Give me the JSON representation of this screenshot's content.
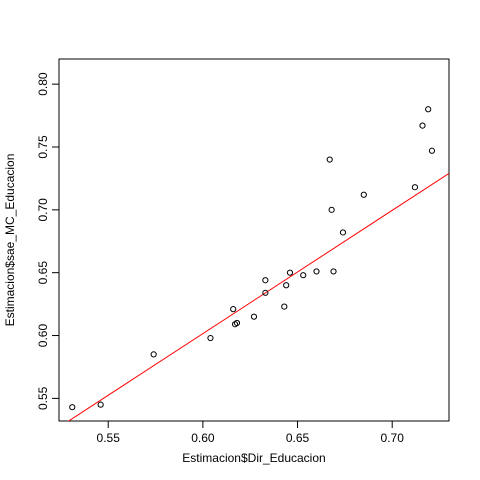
{
  "chart_data": {
    "type": "scatter",
    "title": "",
    "xlabel": "Estimacion$Dir_Educacion",
    "ylabel": "Estimacion$sae_MC_Educacion",
    "xlim": [
      0.524,
      0.73
    ],
    "ylim": [
      0.532,
      0.82
    ],
    "x_ticks": [
      0.55,
      0.6,
      0.65,
      0.7
    ],
    "x_tick_labels": [
      "0.55",
      "0.60",
      "0.65",
      "0.70"
    ],
    "y_ticks": [
      0.55,
      0.6,
      0.65,
      0.7,
      0.75,
      0.8
    ],
    "y_tick_labels": [
      "0.55",
      "0.60",
      "0.65",
      "0.70",
      "0.75",
      "0.80"
    ],
    "grid": false,
    "legend": "none",
    "point_color": "#000000",
    "fit_line_color": "#ff0000",
    "fit_line": {
      "x": [
        0.524,
        0.73
      ],
      "y": [
        0.527,
        0.729
      ]
    },
    "points": [
      {
        "x": 0.531,
        "y": 0.543
      },
      {
        "x": 0.546,
        "y": 0.545
      },
      {
        "x": 0.574,
        "y": 0.585
      },
      {
        "x": 0.604,
        "y": 0.598
      },
      {
        "x": 0.616,
        "y": 0.621
      },
      {
        "x": 0.617,
        "y": 0.609
      },
      {
        "x": 0.618,
        "y": 0.61
      },
      {
        "x": 0.627,
        "y": 0.615
      },
      {
        "x": 0.633,
        "y": 0.634
      },
      {
        "x": 0.633,
        "y": 0.644
      },
      {
        "x": 0.643,
        "y": 0.623
      },
      {
        "x": 0.644,
        "y": 0.64
      },
      {
        "x": 0.646,
        "y": 0.65
      },
      {
        "x": 0.653,
        "y": 0.648
      },
      {
        "x": 0.66,
        "y": 0.651
      },
      {
        "x": 0.667,
        "y": 0.74
      },
      {
        "x": 0.668,
        "y": 0.7
      },
      {
        "x": 0.669,
        "y": 0.651
      },
      {
        "x": 0.674,
        "y": 0.682
      },
      {
        "x": 0.685,
        "y": 0.712
      },
      {
        "x": 0.712,
        "y": 0.718
      },
      {
        "x": 0.716,
        "y": 0.767
      },
      {
        "x": 0.719,
        "y": 0.78
      },
      {
        "x": 0.721,
        "y": 0.747
      }
    ]
  }
}
